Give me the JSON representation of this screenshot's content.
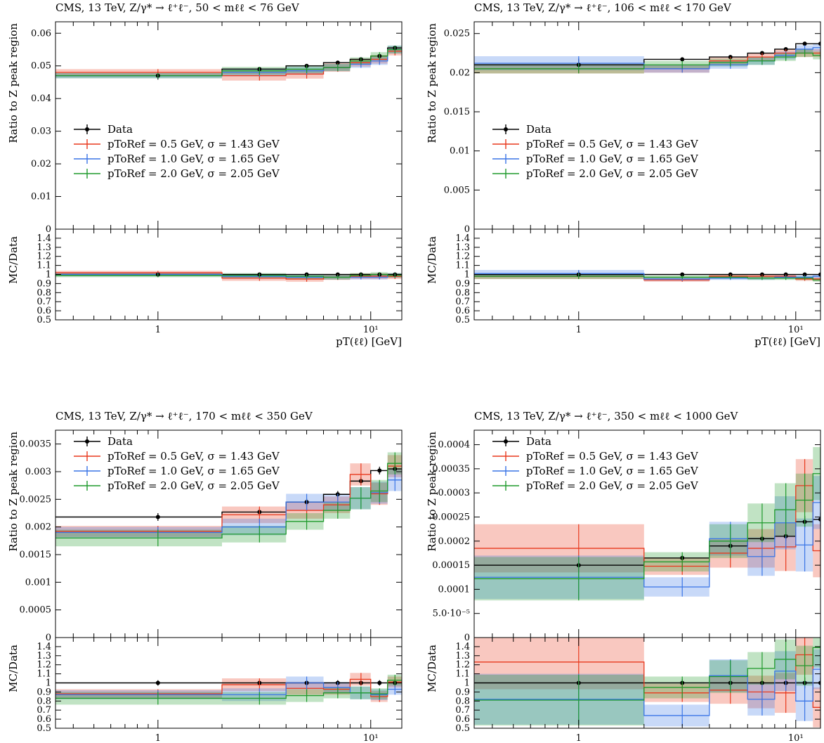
{
  "figure_colors": {
    "Data": "#000000",
    "pToRef = 0.5 GeV, σ = 1.43 GeV": "#e8391d",
    "pToRef = 1.0 GeV, σ = 1.65 GeV": "#3a75e6",
    "pToRef = 2.0 GeV, σ = 2.05 GeV": "#1f9a2c"
  },
  "chart_data": [
    {
      "type": "line",
      "title": "CMS, 13 TeV, Z/γ* → ℓ⁺ℓ⁻, 50 < mℓℓ < 76 GeV",
      "ylabel": "Ratio to Z peak region",
      "ratio_ylabel": "MC/Data",
      "xlabel": "pT(ℓℓ) [GeV]",
      "xscale": "log",
      "xlim": [
        0.33,
        14
      ],
      "ylim": [
        0,
        0.0635
      ],
      "ratio_ylim": [
        0.5,
        1.5
      ],
      "yticks": [
        0,
        0.01,
        0.02,
        0.03,
        0.04,
        0.05,
        0.06
      ],
      "ytick_labels": [
        "0",
        "0.01",
        "0.02",
        "0.03",
        "0.04",
        "0.05",
        "0.06"
      ],
      "ratio_yticks": [
        0.5,
        0.6,
        0.7,
        0.8,
        0.9,
        1.0,
        1.1,
        1.2,
        1.3,
        1.4
      ],
      "ratio_ytick_labels": [
        "0.5",
        "0.6",
        "0.7",
        "0.8",
        "0.9",
        "1",
        "1.1",
        "1.2",
        "1.3",
        "1.4"
      ],
      "xtick_labels": [
        "1",
        "10¹"
      ],
      "legend_position": "center-left",
      "bin_edges": [
        0,
        2,
        4,
        6,
        8,
        10,
        12,
        14
      ],
      "series": [
        {
          "name": "Data",
          "values": [
            0.047,
            0.049,
            0.05,
            0.051,
            0.052,
            0.053,
            0.0555
          ],
          "errors": [
            0.0012,
            0.0004,
            0.0004,
            0.0004,
            0.0004,
            0.0004,
            0.0004
          ]
        },
        {
          "name": "pToRef = 0.5 GeV, σ = 1.43 GeV",
          "values": [
            0.048,
            0.047,
            0.0475,
            0.0495,
            0.051,
            0.052,
            0.0545
          ],
          "errors": [
            0.001,
            0.0015,
            0.0014,
            0.0013,
            0.0012,
            0.0013,
            0.0013
          ]
        },
        {
          "name": "pToRef = 1.0 GeV, σ = 1.65 GeV",
          "values": [
            0.047,
            0.048,
            0.0485,
            0.0495,
            0.0505,
            0.0515,
            0.055
          ],
          "errors": [
            0.0008,
            0.0012,
            0.0012,
            0.0011,
            0.0011,
            0.0012,
            0.0012
          ]
        },
        {
          "name": "pToRef = 2.0 GeV, σ = 2.05 GeV",
          "values": [
            0.047,
            0.0485,
            0.049,
            0.0495,
            0.0515,
            0.053,
            0.055
          ],
          "errors": [
            0.0008,
            0.0012,
            0.0012,
            0.0011,
            0.0011,
            0.0012,
            0.0012
          ]
        }
      ],
      "ratio_series": [
        {
          "name": "Data",
          "values": [
            1.0,
            1.0,
            1.0,
            1.0,
            1.0,
            1.0,
            1.0
          ],
          "errors": [
            0.02,
            0.01,
            0.01,
            0.01,
            0.01,
            0.01,
            0.01
          ]
        },
        {
          "name": "pToRef = 0.5 GeV, σ = 1.43 GeV",
          "values": [
            1.02,
            0.96,
            0.95,
            0.97,
            0.98,
            0.98,
            0.98
          ],
          "errors": [
            0.02,
            0.03,
            0.03,
            0.03,
            0.03,
            0.03,
            0.03
          ]
        },
        {
          "name": "pToRef = 1.0 GeV, σ = 1.65 GeV",
          "values": [
            1.0,
            0.98,
            0.97,
            0.97,
            0.97,
            0.97,
            0.99
          ],
          "errors": [
            0.02,
            0.025,
            0.025,
            0.025,
            0.025,
            0.025,
            0.025
          ]
        },
        {
          "name": "pToRef = 2.0 GeV, σ = 2.05 GeV",
          "values": [
            0.99,
            0.99,
            0.98,
            0.97,
            0.99,
            1.0,
            0.99
          ],
          "errors": [
            0.02,
            0.025,
            0.025,
            0.025,
            0.025,
            0.025,
            0.025
          ]
        }
      ]
    },
    {
      "type": "line",
      "title": "CMS, 13 TeV, Z/γ* → ℓ⁺ℓ⁻, 106 < mℓℓ < 170 GeV",
      "ylabel": "Ratio to Z peak region",
      "ratio_ylabel": "MC/Data",
      "xlabel": "pT(ℓℓ) [GeV]",
      "xscale": "log",
      "xlim": [
        0.33,
        13
      ],
      "ylim": [
        0,
        0.0265
      ],
      "ratio_ylim": [
        0.5,
        1.5
      ],
      "yticks": [
        0,
        0.005,
        0.01,
        0.015,
        0.02,
        0.025
      ],
      "ytick_labels": [
        "0",
        "0.005",
        "0.01",
        "0.015",
        "0.02",
        "0.025"
      ],
      "ratio_yticks": [
        0.5,
        0.6,
        0.7,
        0.8,
        0.9,
        1.0,
        1.1,
        1.2,
        1.3,
        1.4
      ],
      "ratio_ytick_labels": [
        "0.5",
        "0.6",
        "0.7",
        "0.8",
        "0.9",
        "1",
        "1.1",
        "1.2",
        "1.3",
        "1.4"
      ],
      "xtick_labels": [
        "1",
        "10¹"
      ],
      "legend_position": "center-left",
      "bin_edges": [
        0,
        2,
        4,
        6,
        8,
        10,
        12,
        14
      ],
      "series": [
        {
          "name": "Data",
          "values": [
            0.021,
            0.0217,
            0.022,
            0.0225,
            0.023,
            0.0237,
            0.0237
          ],
          "errors": [
            0.0008,
            0.0002,
            0.0002,
            0.0002,
            0.0002,
            0.0002,
            0.0002
          ]
        },
        {
          "name": "pToRef = 0.5 GeV, σ = 1.43 GeV",
          "values": [
            0.0205,
            0.0205,
            0.0215,
            0.022,
            0.0225,
            0.0225,
            0.0225
          ],
          "errors": [
            0.0006,
            0.0005,
            0.0005,
            0.0005,
            0.0005,
            0.0005,
            0.0005
          ]
        },
        {
          "name": "pToRef = 1.0 GeV, σ = 1.65 GeV",
          "values": [
            0.0212,
            0.0205,
            0.021,
            0.0215,
            0.0222,
            0.023,
            0.0232
          ],
          "errors": [
            0.0009,
            0.0005,
            0.0005,
            0.0005,
            0.0005,
            0.0005,
            0.0005
          ]
        },
        {
          "name": "pToRef = 2.0 GeV, σ = 2.05 GeV",
          "values": [
            0.0205,
            0.021,
            0.0213,
            0.0215,
            0.022,
            0.0225,
            0.0222
          ],
          "errors": [
            0.0006,
            0.0005,
            0.0005,
            0.0005,
            0.0005,
            0.0005,
            0.0005
          ]
        }
      ],
      "ratio_series": [
        {
          "name": "Data",
          "values": [
            1.0,
            1.0,
            1.0,
            1.0,
            1.0,
            1.0,
            1.0
          ],
          "errors": [
            0.04,
            0.01,
            0.01,
            0.01,
            0.01,
            0.01,
            0.01
          ]
        },
        {
          "name": "pToRef = 0.5 GeV, σ = 1.43 GeV",
          "values": [
            0.98,
            0.94,
            0.98,
            0.98,
            0.98,
            0.95,
            0.95
          ],
          "errors": [
            0.03,
            0.02,
            0.02,
            0.02,
            0.02,
            0.02,
            0.02
          ]
        },
        {
          "name": "pToRef = 1.0 GeV, σ = 1.65 GeV",
          "values": [
            1.01,
            0.95,
            0.96,
            0.96,
            0.97,
            0.97,
            0.98
          ],
          "errors": [
            0.04,
            0.02,
            0.02,
            0.02,
            0.02,
            0.02,
            0.02
          ]
        },
        {
          "name": "pToRef = 2.0 GeV, σ = 2.05 GeV",
          "values": [
            0.98,
            0.97,
            0.97,
            0.96,
            0.96,
            0.96,
            0.94
          ],
          "errors": [
            0.03,
            0.02,
            0.02,
            0.02,
            0.02,
            0.02,
            0.02
          ]
        }
      ]
    },
    {
      "type": "line",
      "title": "CMS, 13 TeV, Z/γ* → ℓ⁺ℓ⁻, 170 < mℓℓ < 350 GeV",
      "ylabel": "Ratio to Z peak region",
      "ratio_ylabel": "MC/Data",
      "xlabel": "pT(ℓℓ) [GeV]",
      "xscale": "log",
      "xlim": [
        0.33,
        14
      ],
      "ylim": [
        0,
        0.00375
      ],
      "ratio_ylim": [
        0.5,
        1.5
      ],
      "yticks": [
        0,
        0.0005,
        0.001,
        0.0015,
        0.002,
        0.0025,
        0.003,
        0.0035
      ],
      "ytick_labels": [
        "0",
        "0.0005",
        "0.001",
        "0.0015",
        "0.002",
        "0.0025",
        "0.003",
        "0.0035"
      ],
      "ratio_yticks": [
        0.5,
        0.6,
        0.7,
        0.8,
        0.9,
        1.0,
        1.1,
        1.2,
        1.3,
        1.4
      ],
      "ratio_ytick_labels": [
        "0.5",
        "0.6",
        "0.7",
        "0.8",
        "0.9",
        "1",
        "1.1",
        "1.2",
        "1.3",
        "1.4"
      ],
      "xtick_labels": [
        "1",
        "10¹"
      ],
      "legend_position": "top-left",
      "bin_edges": [
        0,
        2,
        4,
        6,
        8,
        10,
        12,
        14
      ],
      "series": [
        {
          "name": "Data",
          "values": [
            0.00218,
            0.00227,
            0.00245,
            0.00259,
            0.00283,
            0.00302,
            0.00305
          ],
          "errors": [
            7e-05,
            6e-05,
            6e-05,
            6e-05,
            7e-05,
            7e-05,
            8e-05
          ]
        },
        {
          "name": "pToRef = 0.5 GeV, σ = 1.43 GeV",
          "values": [
            0.00192,
            0.00222,
            0.0023,
            0.0024,
            0.00295,
            0.0026,
            0.0031
          ],
          "errors": [
            0.0001,
            0.00015,
            0.00015,
            0.00015,
            0.0002,
            0.0002,
            0.0002
          ]
        },
        {
          "name": "pToRef = 1.0 GeV, σ = 1.65 GeV",
          "values": [
            0.0019,
            0.002,
            0.00245,
            0.00245,
            0.00252,
            0.00262,
            0.00285
          ],
          "errors": [
            0.0001,
            0.00015,
            0.00015,
            0.00015,
            0.0002,
            0.0002,
            0.0002
          ]
        },
        {
          "name": "pToRef = 2.0 GeV, σ = 2.05 GeV",
          "values": [
            0.0018,
            0.00187,
            0.0021,
            0.0023,
            0.00252,
            0.00265,
            0.00315
          ],
          "errors": [
            0.00015,
            0.00015,
            0.00015,
            0.00015,
            0.0002,
            0.0002,
            0.0002
          ]
        }
      ],
      "ratio_series": [
        {
          "name": "Data",
          "values": [
            1.0,
            1.0,
            1.0,
            1.0,
            1.0,
            1.0,
            1.0
          ],
          "errors": [
            0.03,
            0.03,
            0.03,
            0.03,
            0.03,
            0.03,
            0.03
          ]
        },
        {
          "name": "pToRef = 0.5 GeV, σ = 1.43 GeV",
          "values": [
            0.88,
            0.98,
            0.94,
            0.93,
            1.04,
            0.85,
            1.01
          ],
          "errors": [
            0.05,
            0.07,
            0.07,
            0.06,
            0.07,
            0.06,
            0.06
          ]
        },
        {
          "name": "pToRef = 1.0 GeV, σ = 1.65 GeV",
          "values": [
            0.87,
            0.87,
            1.0,
            0.95,
            0.89,
            0.87,
            0.93
          ],
          "errors": [
            0.05,
            0.07,
            0.07,
            0.06,
            0.07,
            0.06,
            0.06
          ]
        },
        {
          "name": "pToRef = 2.0 GeV, σ = 2.05 GeV",
          "values": [
            0.83,
            0.83,
            0.86,
            0.89,
            0.89,
            0.88,
            1.03
          ],
          "errors": [
            0.07,
            0.07,
            0.07,
            0.06,
            0.07,
            0.06,
            0.06
          ]
        }
      ]
    },
    {
      "type": "line",
      "title": "CMS, 13 TeV, Z/γ* → ℓ⁺ℓ⁻, 350 < mℓℓ < 1000 GeV",
      "ylabel": "Ratio to Z peak region",
      "ratio_ylabel": "MC/Data",
      "xlabel": "pT(ℓℓ) [GeV]",
      "xscale": "log",
      "xlim": [
        0.33,
        13
      ],
      "ylim": [
        0,
        0.00043
      ],
      "ratio_ylim": [
        0.5,
        1.5
      ],
      "yticks": [
        0,
        5e-05,
        0.0001,
        0.00015,
        0.0002,
        0.00025,
        0.0003,
        0.00035,
        0.0004
      ],
      "ytick_labels": [
        "0",
        "5.0·10⁻⁵",
        "0.0001",
        "0.00015",
        "0.0002",
        "0.00025",
        "0.0003",
        "0.00035",
        "0.0004"
      ],
      "ratio_yticks": [
        0.5,
        0.6,
        0.7,
        0.8,
        0.9,
        1.0,
        1.1,
        1.2,
        1.3,
        1.4
      ],
      "ratio_ytick_labels": [
        "0.5",
        "0.6",
        "0.7",
        "0.8",
        "0.9",
        "1",
        "1.1",
        "1.2",
        "1.3",
        "1.4"
      ],
      "xtick_labels": [
        "1",
        "10¹"
      ],
      "legend_position": "top-left",
      "bin_edges": [
        0,
        2,
        4,
        6,
        8,
        10,
        12,
        14
      ],
      "series": [
        {
          "name": "Data",
          "values": [
            0.00015,
            0.000165,
            0.00019,
            0.000205,
            0.00021,
            0.00024,
            0.000245
          ],
          "errors": [
            6e-06,
            6e-06,
            8e-06,
            8e-06,
            1e-05,
            1.2e-05,
            1.4e-05
          ]
        },
        {
          "name": "pToRef = 0.5 GeV, σ = 1.43 GeV",
          "values": [
            0.000185,
            0.000148,
            0.000175,
            0.000185,
            0.000188,
            0.000315,
            0.00018
          ],
          "errors": [
            5e-05,
            1.8e-05,
            3e-05,
            4e-05,
            5e-05,
            5.5e-05,
            5.5e-05
          ]
        },
        {
          "name": "pToRef = 1.0 GeV, σ = 1.65 GeV",
          "values": [
            0.000125,
            0.000105,
            0.000205,
            0.000168,
            0.000238,
            0.000192,
            0.00028
          ],
          "errors": [
            4.5e-05,
            2e-05,
            3.5e-05,
            4e-05,
            5.5e-05,
            5.5e-05,
            5.5e-05
          ]
        },
        {
          "name": "pToRef = 2.0 GeV, σ = 2.05 GeV",
          "values": [
            0.000122,
            0.000157,
            0.0002,
            0.000238,
            0.000265,
            0.000285,
            0.00034
          ],
          "errors": [
            4.5e-05,
            2e-05,
            3.5e-05,
            4e-05,
            5.5e-05,
            5.5e-05,
            5.5e-05
          ]
        }
      ],
      "ratio_series": [
        {
          "name": "Data",
          "values": [
            1.0,
            1.0,
            1.0,
            1.0,
            1.0,
            1.0,
            1.0
          ],
          "errors": [
            0.04,
            0.04,
            0.05,
            0.05,
            0.05,
            0.06,
            0.06
          ]
        },
        {
          "name": "pToRef = 0.5 GeV, σ = 1.43 GeV",
          "values": [
            1.23,
            0.89,
            0.92,
            0.9,
            0.89,
            1.31,
            0.73
          ],
          "errors": [
            0.3,
            0.1,
            0.15,
            0.18,
            0.22,
            0.22,
            0.22
          ]
        },
        {
          "name": "pToRef = 1.0 GeV, σ = 1.65 GeV",
          "values": [
            0.82,
            0.64,
            1.08,
            0.82,
            1.13,
            0.8,
            1.15
          ],
          "errors": [
            0.28,
            0.12,
            0.18,
            0.18,
            0.22,
            0.22,
            0.22
          ]
        },
        {
          "name": "pToRef = 2.0 GeV, σ = 2.05 GeV",
          "values": [
            0.81,
            0.95,
            1.07,
            1.16,
            1.26,
            1.19,
            1.39
          ],
          "errors": [
            0.28,
            0.12,
            0.18,
            0.18,
            0.22,
            0.22,
            0.22
          ]
        }
      ]
    }
  ]
}
